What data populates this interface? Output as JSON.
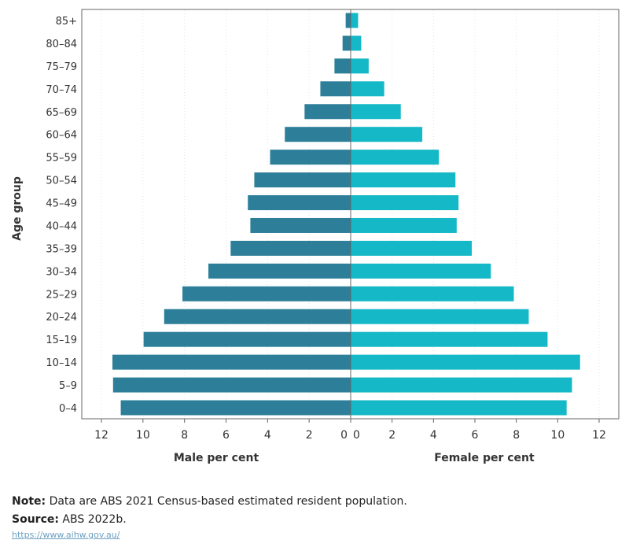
{
  "chart_data": {
    "type": "bar",
    "orientation": "horizontal",
    "subtype": "population-pyramid",
    "ylabel": "Age group",
    "categories": [
      "85+",
      "80–84",
      "75–79",
      "70–74",
      "65–69",
      "60–64",
      "55–59",
      "50–54",
      "45–49",
      "40–44",
      "35–39",
      "30–34",
      "25–29",
      "20–24",
      "15–19",
      "10–14",
      "5–9",
      "0–4"
    ],
    "series": [
      {
        "name": "Male per cent",
        "color": "#2d7f99",
        "side": "left",
        "values": [
          0.24,
          0.39,
          0.78,
          1.46,
          2.22,
          3.17,
          3.88,
          4.64,
          4.95,
          4.83,
          5.78,
          6.85,
          8.1,
          8.98,
          9.97,
          11.47,
          11.44,
          11.07
        ]
      },
      {
        "name": "Female per cent",
        "color": "#14b8c6",
        "side": "right",
        "values": [
          0.36,
          0.51,
          0.87,
          1.62,
          2.42,
          3.46,
          4.26,
          5.06,
          5.21,
          5.12,
          5.85,
          6.77,
          7.88,
          8.6,
          9.51,
          11.08,
          10.69,
          10.43
        ]
      }
    ],
    "xlim": [
      0,
      12
    ],
    "xticks": [
      0,
      2,
      4,
      6,
      8,
      10,
      12
    ],
    "grid": "vertical dotted",
    "legend": "none"
  },
  "footer": {
    "note_label": "Note:",
    "note_text": " Data are ABS 2021 Census-based estimated resident population.",
    "source_label": "Source:",
    "source_text": " ABS 2022b.",
    "link": "https://www.aihw.gov.au/"
  }
}
